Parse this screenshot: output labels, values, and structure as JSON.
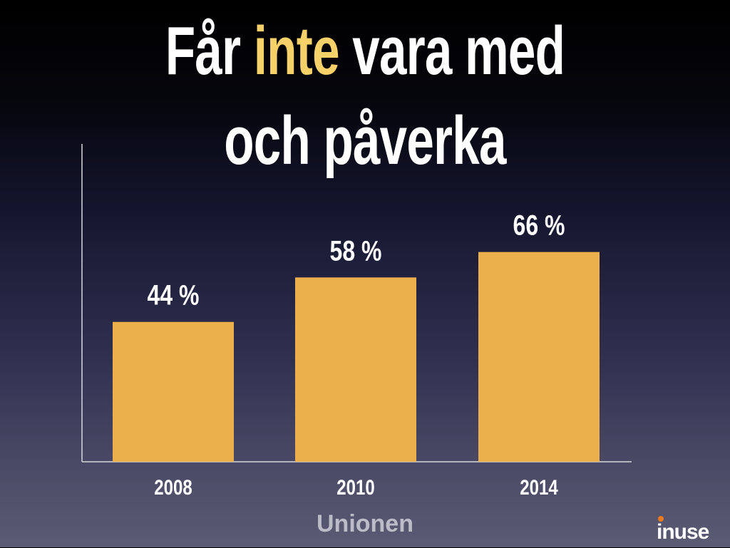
{
  "title": {
    "line1_before": "Får",
    "line1_highlight": "inte",
    "line1_after": "vara med",
    "line2": "och påverka"
  },
  "logo_text": "inuse",
  "colors": {
    "bar": "#ebaf4c",
    "highlight": "#f6d16a",
    "axis": "#d8d8e0",
    "logo_dot": "#f07a1c"
  },
  "chart_data": {
    "type": "bar",
    "categories": [
      "2008",
      "2010",
      "2014"
    ],
    "values": [
      44,
      58,
      66
    ],
    "data_labels": [
      "44 %",
      "58 %",
      "66 %"
    ],
    "xlabel": "Unionen",
    "ylabel": "",
    "ylim": [
      0,
      100
    ],
    "grid": false,
    "legend": "none"
  }
}
